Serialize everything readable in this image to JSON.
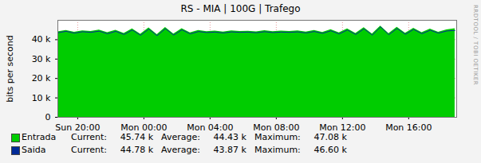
{
  "chart_data": {
    "type": "area",
    "title": "RS - MIA | 100G | Trafego",
    "y_label": "bits per second",
    "side_text": "RRDTOOL / TOBI OETIKER",
    "x": [
      18.8,
      19.3,
      19.8,
      20.3,
      20.8,
      21.3,
      21.8,
      22.3,
      22.8,
      23.3,
      23.8,
      24.3,
      24.8,
      25.3,
      25.8,
      26.3,
      26.8,
      27.3,
      27.8,
      28.3,
      28.8,
      29.3,
      29.8,
      30.3,
      30.8,
      31.3,
      31.8,
      32.3,
      32.8,
      33.3,
      33.8,
      34.3,
      34.8,
      35.3,
      35.8,
      36.3,
      36.8,
      37.3,
      37.8,
      38.3,
      38.8,
      39.3,
      39.8,
      40.3,
      40.8,
      41.3,
      41.8,
      42.3,
      42.8
    ],
    "series": [
      {
        "name": "Entrada",
        "type": "area",
        "color": "#00cc00",
        "values": [
          44100,
          44800,
          43900,
          44600,
          44300,
          45000,
          43600,
          44900,
          43200,
          45600,
          42800,
          46100,
          42600,
          46300,
          42900,
          45700,
          43500,
          44800,
          44200,
          44500,
          44000,
          44600,
          44300,
          44400,
          44100,
          44700,
          44200,
          44500,
          44300,
          44600,
          44000,
          44800,
          43800,
          45200,
          43500,
          45600,
          43200,
          46200,
          42900,
          47080,
          43100,
          46400,
          43300,
          45900,
          43600,
          45500,
          43900,
          45100,
          45740
        ],
        "stats": [
          {
            "value": 45740,
            "label": "45.74 k"
          },
          {
            "value": 44430,
            "label": "44.43 k"
          },
          {
            "value": 47080,
            "label": "47.08 k"
          }
        ]
      },
      {
        "name": "Saida",
        "type": "line",
        "color": "#002a97",
        "values": [
          43600,
          44300,
          43400,
          44100,
          43800,
          44400,
          43100,
          44300,
          42700,
          45000,
          42300,
          45500,
          42100,
          45700,
          42400,
          45100,
          43000,
          44200,
          43700,
          43900,
          43500,
          44000,
          43800,
          43900,
          43600,
          44100,
          43700,
          43900,
          43800,
          44000,
          43500,
          44200,
          43300,
          44600,
          43000,
          45000,
          42700,
          45600,
          42400,
          46600,
          42600,
          45800,
          42800,
          45300,
          43100,
          44900,
          43400,
          44500,
          44780
        ],
        "stats": [
          {
            "value": 44780,
            "label": "44.78 k"
          },
          {
            "value": 43870,
            "label": "43.87 k"
          },
          {
            "value": 46600,
            "label": "46.60 k"
          }
        ]
      }
    ],
    "stat_labels": [
      "Current:",
      "Average:",
      "Maximum:"
    ],
    "xlim": [
      18.8,
      42.9
    ],
    "xticks": [
      {
        "value": 20,
        "label": "Sun 20:00"
      },
      {
        "value": 24,
        "label": "Mon 00:00"
      },
      {
        "value": 28,
        "label": "Mon 04:00"
      },
      {
        "value": 32,
        "label": "Mon 08:00"
      },
      {
        "value": 36,
        "label": "Mon 12:00"
      },
      {
        "value": 40,
        "label": "Mon 16:00"
      }
    ],
    "ylim": [
      0,
      50000
    ],
    "yticks": [
      0,
      {
        "value": 10000,
        "label": "10 k"
      },
      {
        "value": 20000,
        "label": "20 k"
      },
      {
        "value": 30000,
        "label": "30 k"
      },
      {
        "value": 40000,
        "label": "40 k"
      }
    ],
    "grid": true,
    "legend": "bottom"
  }
}
